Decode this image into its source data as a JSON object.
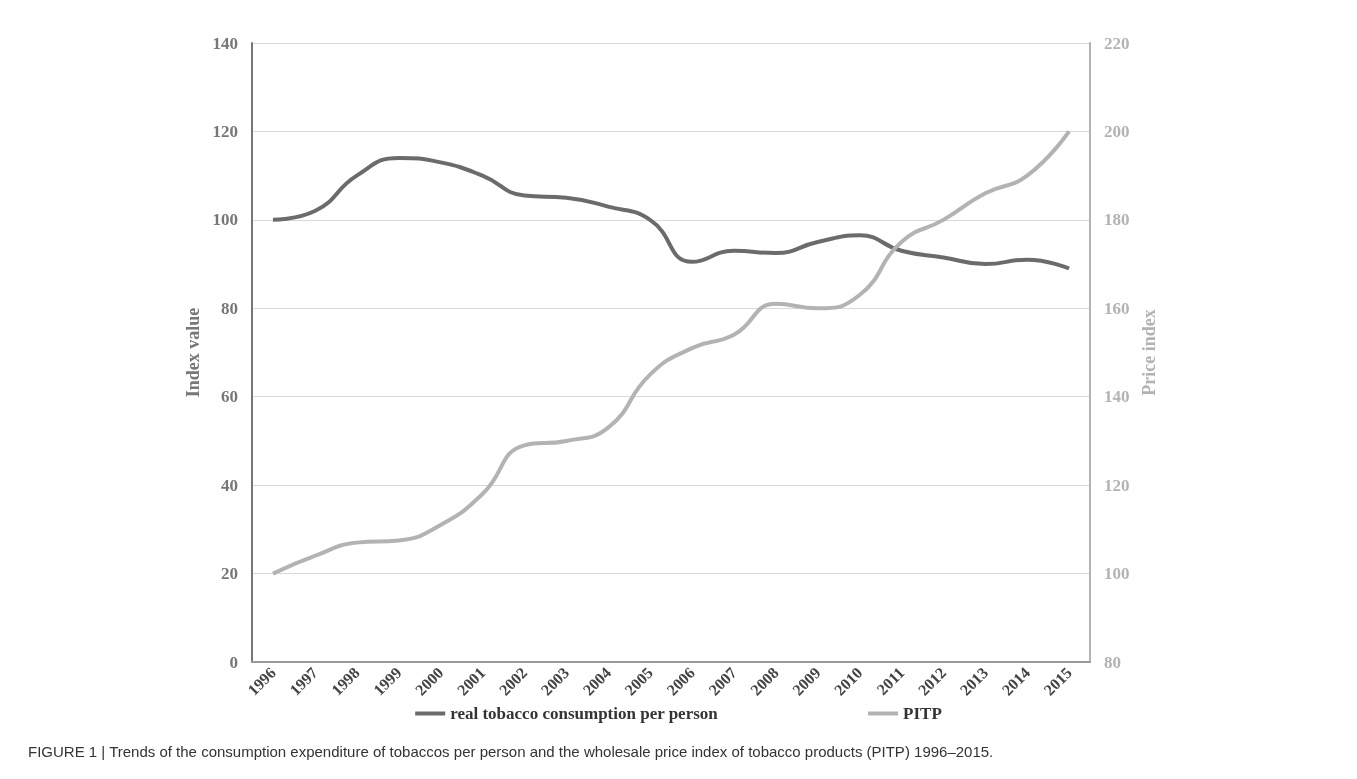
{
  "chart_data": {
    "type": "line",
    "categories": [
      "1996",
      "1997",
      "1998",
      "1999",
      "2000",
      "2001",
      "2002",
      "2003",
      "2004",
      "2005",
      "2006",
      "2007",
      "2008",
      "2009",
      "2010",
      "2011",
      "2012",
      "2013",
      "2014",
      "2015"
    ],
    "series": [
      {
        "name": "real tobacco consumption per person",
        "color": "#6b6b6b",
        "values": [
          100,
          102,
          110,
          114,
          113,
          110,
          105.5,
          105,
          103,
          100,
          90.5,
          93,
          92.5,
          95,
          96.5,
          93,
          91.5,
          90,
          91,
          89
        ]
      },
      {
        "name": "PITP",
        "color": "#b3b3b3",
        "axis": "y2",
        "values": [
          100,
          104,
          107,
          107.5,
          111,
          118,
          129,
          130,
          133,
          145,
          151,
          154,
          161,
          160,
          163,
          175,
          180,
          186,
          190,
          200
        ]
      }
    ],
    "ylabel": "Index value",
    "y2label": "Price index",
    "ylim": [
      0,
      140
    ],
    "yticks": [
      0,
      20,
      40,
      60,
      80,
      100,
      120,
      140
    ],
    "y2lim": [
      80,
      220
    ],
    "y2ticks": [
      80,
      100,
      120,
      140,
      160,
      180,
      200,
      220
    ],
    "grid": "y",
    "legend": "bottom",
    "marker": "none",
    "line_style": "solid",
    "annotations": [
      "FIGURE 1 | Trends of the consumption expenditure of tobaccos per person and the wholesale price index of tobacco products (PITP) 1996–2015."
    ]
  }
}
